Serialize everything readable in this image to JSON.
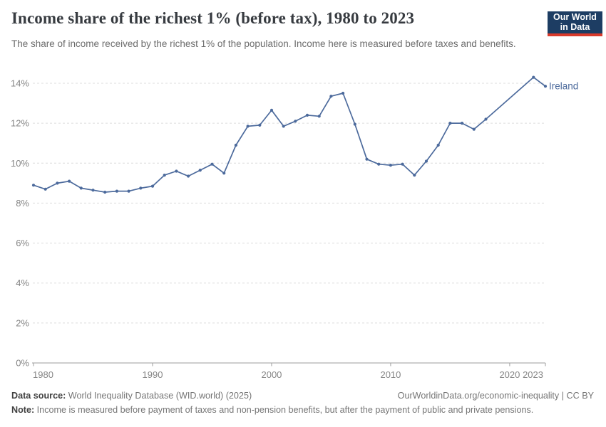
{
  "header": {
    "title": "Income share of the richest 1% (before tax), 1980 to 2023",
    "subtitle": "The share of income received by the richest 1% of the population. Income here is measured before taxes and benefits.",
    "logo": {
      "line1": "Our World",
      "line2": "in Data"
    }
  },
  "chart_data": {
    "type": "line",
    "title": "Income share of the richest 1% (before tax), 1980 to 2023",
    "unit": "%",
    "x": {
      "min": 1980,
      "max": 2023,
      "ticks": [
        1980,
        1990,
        2000,
        2010,
        2020,
        2023
      ]
    },
    "y": {
      "min": 0,
      "max": 14,
      "ticks": [
        0,
        2,
        4,
        6,
        8,
        10,
        12,
        14
      ],
      "tick_suffix": "%"
    },
    "grid": true,
    "legend_position": "end-of-line-label",
    "missing_years_interpolated": [
      2019,
      2020,
      2021
    ],
    "series": [
      {
        "name": "Ireland",
        "points": [
          [
            1980,
            8.9
          ],
          [
            1981,
            8.7
          ],
          [
            1982,
            9.0
          ],
          [
            1983,
            9.1
          ],
          [
            1984,
            8.75
          ],
          [
            1985,
            8.65
          ],
          [
            1986,
            8.55
          ],
          [
            1987,
            8.6
          ],
          [
            1988,
            8.6
          ],
          [
            1989,
            8.75
          ],
          [
            1990,
            8.85
          ],
          [
            1991,
            9.4
          ],
          [
            1992,
            9.6
          ],
          [
            1993,
            9.35
          ],
          [
            1994,
            9.65
          ],
          [
            1995,
            9.95
          ],
          [
            1996,
            9.5
          ],
          [
            1997,
            10.9
          ],
          [
            1998,
            11.85
          ],
          [
            1999,
            11.9
          ],
          [
            2000,
            12.65
          ],
          [
            2001,
            11.85
          ],
          [
            2002,
            12.1
          ],
          [
            2003,
            12.4
          ],
          [
            2004,
            12.35
          ],
          [
            2005,
            13.35
          ],
          [
            2006,
            13.5
          ],
          [
            2007,
            11.95
          ],
          [
            2008,
            10.2
          ],
          [
            2009,
            9.95
          ],
          [
            2010,
            9.9
          ],
          [
            2011,
            9.95
          ],
          [
            2012,
            9.4
          ],
          [
            2013,
            10.1
          ],
          [
            2014,
            10.9
          ],
          [
            2015,
            12.0
          ],
          [
            2016,
            12.0
          ],
          [
            2017,
            11.7
          ],
          [
            2018,
            12.2
          ],
          [
            2022,
            14.3
          ],
          [
            2023,
            13.85
          ]
        ]
      }
    ]
  },
  "footer": {
    "datasource_label": "Data source:",
    "datasource_text": " World Inequality Database (WID.world) (2025)",
    "link_text": "OurWorldinData.org/economic-inequality | CC BY",
    "note_label": "Note:",
    "note_text": " Income is measured before payment of taxes and non-pension benefits, but after the payment of public and private pensions."
  },
  "colors": {
    "line": "#4c6a9c",
    "series_label": "#4c6a9c",
    "grid": "#dcdcdc",
    "axis": "#9e9e9e",
    "tick_label": "#858585",
    "title": "#373b40",
    "subtitle": "#6c6c6c",
    "footer": "#757575",
    "footer_bold": "#414141",
    "logo_bg": "#1d3d63",
    "logo_red": "#d93a2b"
  }
}
